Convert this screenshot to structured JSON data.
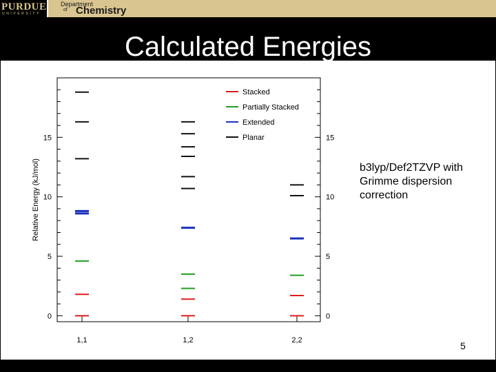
{
  "header": {
    "logo_main": "PURDUE",
    "logo_sub": "UNIVERSITY",
    "dept_line1": "Department",
    "dept_line2": "of",
    "dept_line3": "Chemistry"
  },
  "slide": {
    "title": "Calculated Energies",
    "annotation": "b3lyp/Def2TZVP with Grimme dispersion correction",
    "page_number": "5"
  },
  "colors": {
    "stacked": "#e11b1b",
    "partially_stacked": "#1e9e1e",
    "extended": "#1a2fbf",
    "planar": "#111111"
  },
  "chart_data": {
    "type": "scatter",
    "title": "",
    "xlabel": "",
    "ylabel": "Relative Energy (kJ/mol)",
    "categories": [
      "1,1",
      "1,2",
      "2,2"
    ],
    "ylim": [
      -0.5,
      20
    ],
    "yticks": [
      0,
      5,
      10,
      15
    ],
    "ytick_labels": [
      "0",
      "5",
      "10",
      "15"
    ],
    "legend_position": "top-right",
    "series": [
      {
        "name": "Stacked",
        "color": "#e11b1b",
        "points": [
          {
            "cat": "1,1",
            "values": [
              0,
              1.8
            ]
          },
          {
            "cat": "1,2",
            "values": [
              0,
              1.4
            ]
          },
          {
            "cat": "2,2",
            "values": [
              0,
              1.7
            ]
          }
        ]
      },
      {
        "name": "Partially Stacked",
        "color": "#1e9e1e",
        "points": [
          {
            "cat": "1,1",
            "values": [
              4.6
            ]
          },
          {
            "cat": "1,2",
            "values": [
              2.3,
              3.5
            ]
          },
          {
            "cat": "2,2",
            "values": [
              3.4
            ]
          }
        ]
      },
      {
        "name": "Extended",
        "color": "#1a2fbf",
        "points": [
          {
            "cat": "1,1",
            "values": [
              8.6,
              8.8
            ]
          },
          {
            "cat": "1,2",
            "values": [
              7.4
            ]
          },
          {
            "cat": "2,2",
            "values": [
              6.5
            ]
          }
        ]
      },
      {
        "name": "Planar",
        "color": "#111111",
        "points": [
          {
            "cat": "1,1",
            "values": [
              13.2,
              16.3,
              18.8
            ]
          },
          {
            "cat": "1,2",
            "values": [
              10.7,
              11.7,
              13.4,
              14.2,
              15.3,
              16.3
            ]
          },
          {
            "cat": "2,2",
            "values": [
              10.1,
              11.0
            ]
          }
        ]
      }
    ]
  }
}
